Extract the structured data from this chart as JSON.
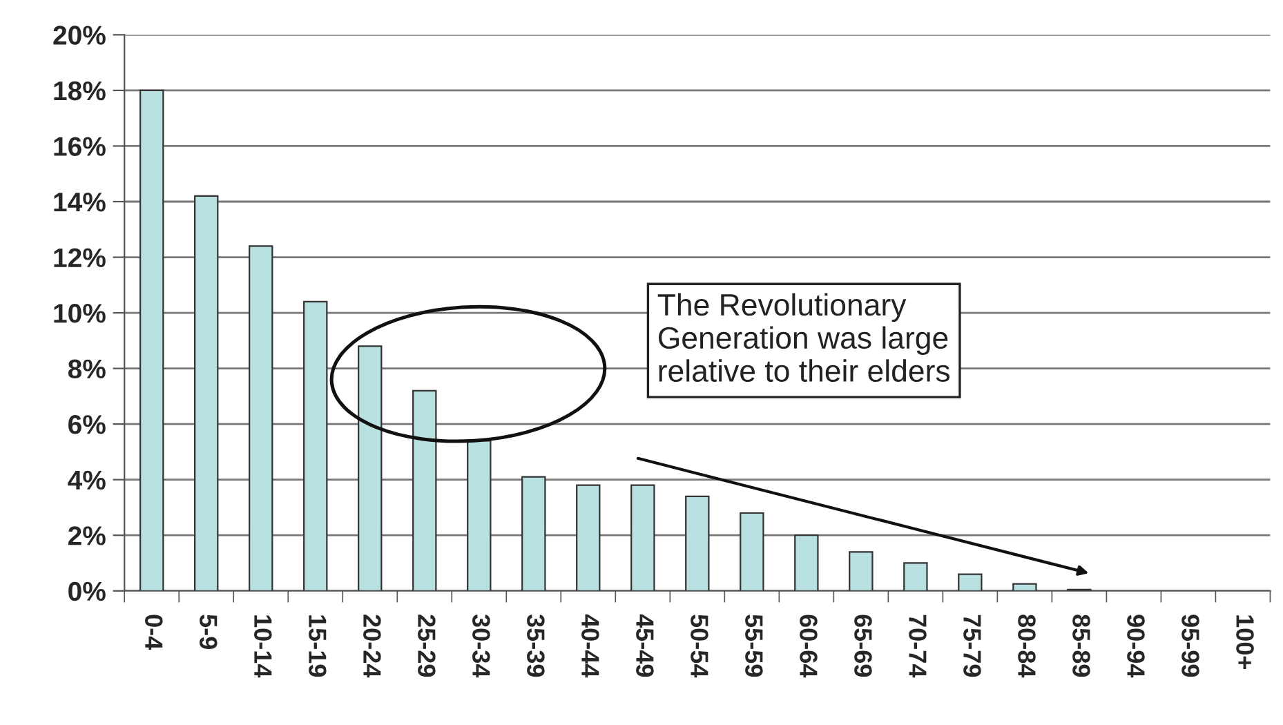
{
  "chart_data": {
    "type": "bar",
    "categories": [
      "0-4",
      "5-9",
      "10-14",
      "15-19",
      "20-24",
      "25-29",
      "30-34",
      "35-39",
      "40-44",
      "45-49",
      "50-54",
      "55-59",
      "60-64",
      "65-69",
      "70-74",
      "75-79",
      "80-84",
      "85-89",
      "90-94",
      "95-99",
      "100+"
    ],
    "values": [
      18.0,
      14.2,
      12.4,
      10.4,
      8.8,
      7.2,
      5.4,
      4.1,
      3.8,
      3.8,
      3.4,
      2.8,
      2.0,
      1.4,
      1.0,
      0.6,
      0.25,
      0.05,
      0,
      0,
      0
    ],
    "color": "#b9e1e1",
    "ylim": [
      0,
      20
    ],
    "yticks": [
      {
        "value": 0,
        "label": "0%"
      },
      {
        "value": 2,
        "label": "2%"
      },
      {
        "value": 4,
        "label": "4%"
      },
      {
        "value": 6,
        "label": "6%"
      },
      {
        "value": 8,
        "label": "8%"
      },
      {
        "value": 10,
        "label": "10%"
      },
      {
        "value": 12,
        "label": "12%"
      },
      {
        "value": 14,
        "label": "14%"
      },
      {
        "value": 16,
        "label": "16%"
      },
      {
        "value": 18,
        "label": "18%"
      },
      {
        "value": 20,
        "label": "20%"
      }
    ],
    "grid": "y",
    "annotations": [
      "The Revolutionary\nGeneration was large\nrelative to their elders"
    ]
  }
}
